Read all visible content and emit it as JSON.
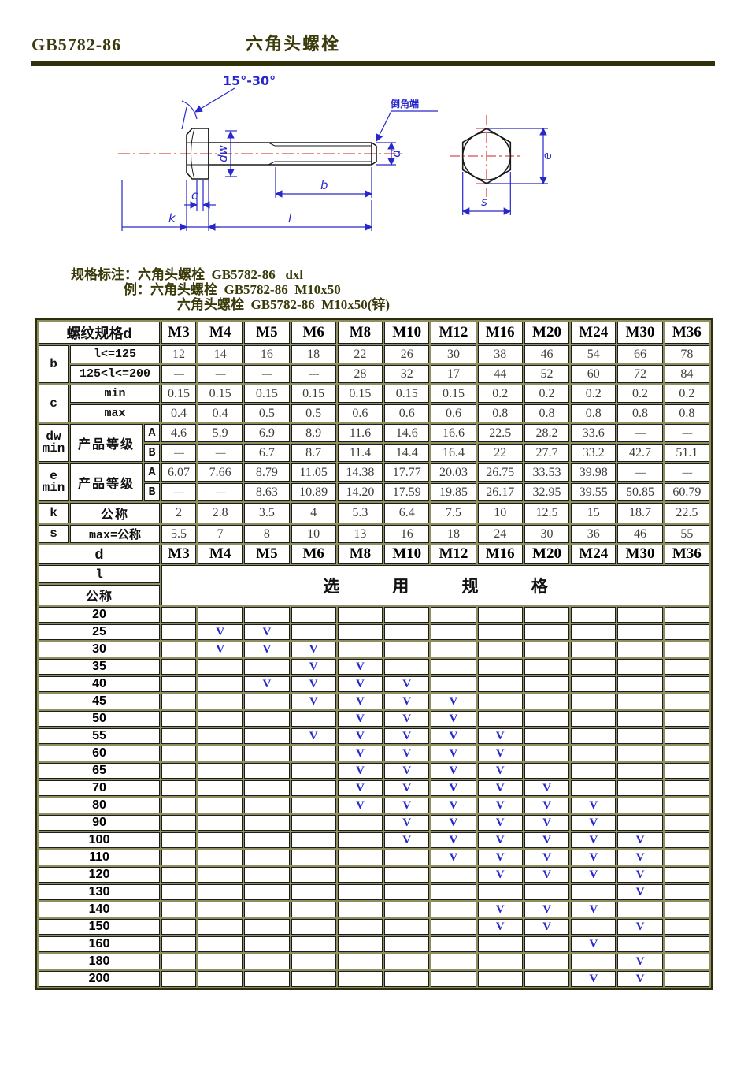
{
  "page": {
    "doc_code": "GB5782-86",
    "doc_title": "六角头螺栓"
  },
  "colors": {
    "accent_olive": "#3a3a0a",
    "dimension_blue": "#2727cc",
    "centerline_red": "#cc2222",
    "table_frame": "#8e8e5e",
    "mark_blue": "#2727cc"
  },
  "drawing": {
    "labels": {
      "angle": "15°-30°",
      "chamfer_note": "倒角端",
      "dw": "dw",
      "d": "d",
      "b": "b",
      "l": "l",
      "c": "c",
      "k": "k",
      "e": "e",
      "s": "s"
    }
  },
  "spec_note": {
    "line1": "规格标注：六角头螺栓  GB5782-86   dxl",
    "line2": "例：六角头螺栓  GB5782-86  M10x50",
    "line3": "六角头螺栓  GB5782-86  M10x50(锌)"
  },
  "dim_table": {
    "header_label": "螺纹规格d",
    "d_row_label": "d",
    "sizes": [
      "M3",
      "M4",
      "M5",
      "M6",
      "M8",
      "M10",
      "M12",
      "M16",
      "M20",
      "M24",
      "M30",
      "M36"
    ],
    "rows": [
      {
        "letter": "b",
        "letter_rows": 2,
        "desc": "l<=125",
        "values": [
          "12",
          "14",
          "16",
          "18",
          "22",
          "26",
          "30",
          "38",
          "46",
          "54",
          "66",
          "78"
        ]
      },
      {
        "desc": "125<l<=200",
        "values": [
          "---",
          "---",
          "---",
          "---",
          "28",
          "32",
          "17",
          "44",
          "52",
          "60",
          "72",
          "84"
        ]
      },
      {
        "letter": "c",
        "letter_rows": 2,
        "desc": "min",
        "values": [
          "0.15",
          "0.15",
          "0.15",
          "0.15",
          "0.15",
          "0.15",
          "0.15",
          "0.2",
          "0.2",
          "0.2",
          "0.2",
          "0.2"
        ]
      },
      {
        "desc": "max",
        "values": [
          "0.4",
          "0.4",
          "0.5",
          "0.5",
          "0.6",
          "0.6",
          "0.6",
          "0.8",
          "0.8",
          "0.8",
          "0.8",
          "0.8"
        ]
      },
      {
        "letter": "dw\nmin",
        "letter_rows": 2,
        "desc": "产品等级",
        "desc_chinese": true,
        "desc_rows": 2,
        "sub": "A",
        "values": [
          "4.6",
          "5.9",
          "6.9",
          "8.9",
          "11.6",
          "14.6",
          "16.6",
          "22.5",
          "28.2",
          "33.6",
          "---",
          "---"
        ]
      },
      {
        "sub": "B",
        "values": [
          "---",
          "---",
          "6.7",
          "8.7",
          "11.4",
          "14.4",
          "16.4",
          "22",
          "27.7",
          "33.2",
          "42.7",
          "51.1"
        ]
      },
      {
        "letter": "e\nmin",
        "letter_rows": 2,
        "desc": "产品等级",
        "desc_chinese": true,
        "desc_rows": 2,
        "sub": "A",
        "values": [
          "6.07",
          "7.66",
          "8.79",
          "11.05",
          "14.38",
          "17.77",
          "20.03",
          "26.75",
          "33.53",
          "39.98",
          "---",
          "---"
        ]
      },
      {
        "sub": "B",
        "values": [
          "---",
          "---",
          "8.63",
          "10.89",
          "14.20",
          "17.59",
          "19.85",
          "26.17",
          "32.95",
          "39.55",
          "50.85",
          "60.79"
        ]
      },
      {
        "letter": "k",
        "desc": "公称",
        "desc_chinese": true,
        "values": [
          "2",
          "2.8",
          "3.5",
          "4",
          "5.3",
          "6.4",
          "7.5",
          "10",
          "12.5",
          "15",
          "18.7",
          "22.5"
        ]
      },
      {
        "letter": "s",
        "desc": "max=公称",
        "values": [
          "5.5",
          "7",
          "8",
          "10",
          "13",
          "16",
          "18",
          "24",
          "30",
          "36",
          "46",
          "55"
        ]
      }
    ]
  },
  "selection": {
    "length_header_top": "l",
    "length_header_bottom": "公称",
    "title": "选用规格",
    "mark": "V",
    "rows": [
      {
        "length": "20",
        "sizes": []
      },
      {
        "length": "25",
        "sizes": [
          "M4",
          "M5"
        ]
      },
      {
        "length": "30",
        "sizes": [
          "M4",
          "M5",
          "M6"
        ]
      },
      {
        "length": "35",
        "sizes": [
          "M6",
          "M8"
        ]
      },
      {
        "length": "40",
        "sizes": [
          "M5",
          "M6",
          "M8",
          "M10"
        ]
      },
      {
        "length": "45",
        "sizes": [
          "M6",
          "M8",
          "M10",
          "M12"
        ]
      },
      {
        "length": "50",
        "sizes": [
          "M8",
          "M10",
          "M12"
        ]
      },
      {
        "length": "55",
        "sizes": [
          "M6",
          "M8",
          "M10",
          "M12",
          "M16"
        ]
      },
      {
        "length": "60",
        "sizes": [
          "M8",
          "M10",
          "M12",
          "M16"
        ]
      },
      {
        "length": "65",
        "sizes": [
          "M8",
          "M10",
          "M12",
          "M16"
        ]
      },
      {
        "length": "70",
        "sizes": [
          "M8",
          "M10",
          "M12",
          "M16",
          "M20"
        ]
      },
      {
        "length": "80",
        "sizes": [
          "M8",
          "M10",
          "M12",
          "M16",
          "M20",
          "M24"
        ]
      },
      {
        "length": "90",
        "sizes": [
          "M10",
          "M12",
          "M16",
          "M20",
          "M24"
        ]
      },
      {
        "length": "100",
        "sizes": [
          "M10",
          "M12",
          "M16",
          "M20",
          "M24",
          "M30"
        ]
      },
      {
        "length": "110",
        "sizes": [
          "M12",
          "M16",
          "M20",
          "M24",
          "M30"
        ]
      },
      {
        "length": "120",
        "sizes": [
          "M16",
          "M20",
          "M24",
          "M30"
        ]
      },
      {
        "length": "130",
        "sizes": [
          "M30"
        ]
      },
      {
        "length": "140",
        "sizes": [
          "M16",
          "M20",
          "M24"
        ]
      },
      {
        "length": "150",
        "sizes": [
          "M16",
          "M20",
          "M30"
        ]
      },
      {
        "length": "160",
        "sizes": [
          "M24"
        ]
      },
      {
        "length": "180",
        "sizes": [
          "M30"
        ]
      },
      {
        "length": "200",
        "sizes": [
          "M24",
          "M30"
        ]
      }
    ]
  }
}
